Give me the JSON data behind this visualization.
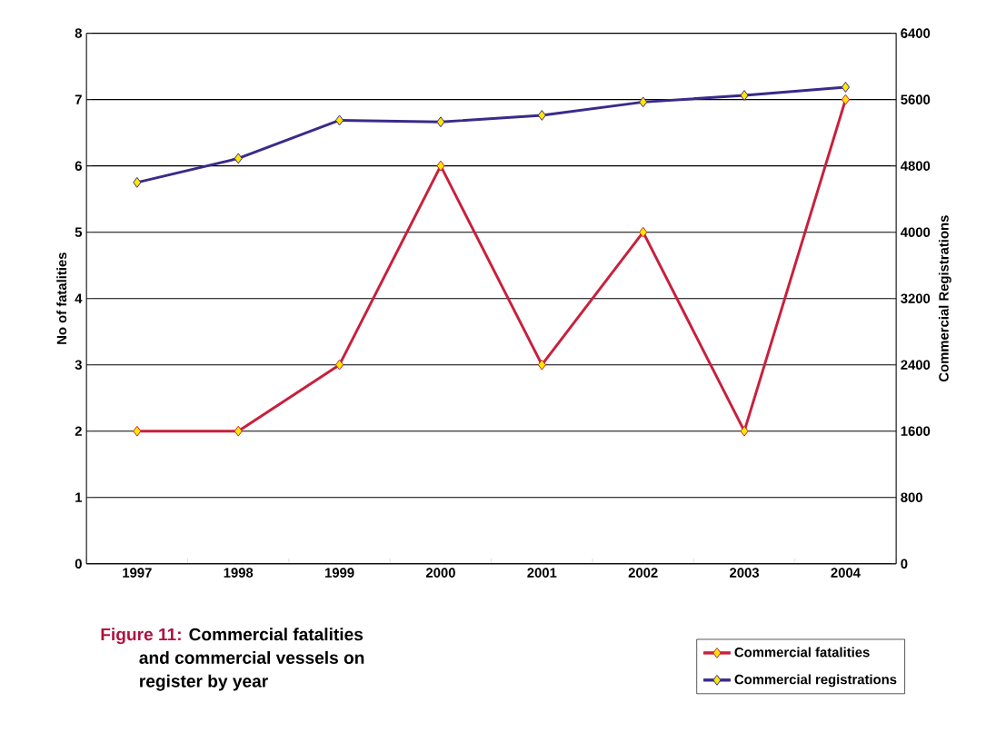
{
  "chart_data": {
    "type": "line",
    "title": "Figure 11:",
    "subtitle": "Commercial fatalities and commercial vessels on register by year",
    "ylabel": "No of fatalities",
    "y2label": "Commercial Registrations",
    "categories": [
      "1997",
      "1998",
      "1999",
      "2000",
      "2001",
      "2002",
      "2003",
      "2004"
    ],
    "series": [
      {
        "name": "Commercial fatalities",
        "color": "#c8203c",
        "values": [
          2,
          2,
          3,
          6,
          3,
          5,
          2,
          7
        ]
      },
      {
        "name": "Commercial registrations",
        "color": "#3a2a8a",
        "axis": "y2",
        "values": [
          4600,
          4890,
          5350,
          5330,
          5410,
          5570,
          5650,
          5750
        ]
      }
    ],
    "ylim": [
      0,
      8
    ],
    "yticks": [
      0,
      1,
      2,
      3,
      4,
      5,
      6,
      7,
      8
    ],
    "y2lim": [
      0,
      6400
    ],
    "y2ticks": [
      0,
      800,
      1600,
      2400,
      3200,
      4000,
      4800,
      5600,
      6400
    ],
    "grid": "y",
    "legend": "bottom right",
    "marker": "diamond",
    "line_style": "solid"
  }
}
